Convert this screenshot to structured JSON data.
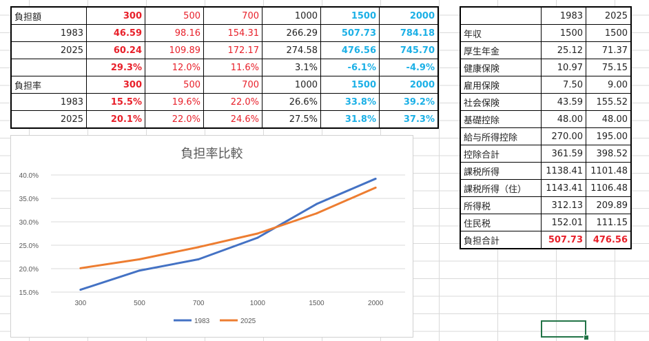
{
  "left_table": {
    "rows": [
      {
        "label": "負担額",
        "align": "left",
        "values": [
          "300",
          "500",
          "700",
          "1000",
          "1500",
          "2000"
        ]
      },
      {
        "label": "1983",
        "align": "right",
        "values": [
          "46.59",
          "98.16",
          "154.31",
          "266.29",
          "507.73",
          "784.18"
        ]
      },
      {
        "label": "2025",
        "align": "right",
        "values": [
          "60.24",
          "109.89",
          "172.17",
          "274.58",
          "476.56",
          "745.70"
        ]
      },
      {
        "label": "",
        "align": "left",
        "values": [
          "29.3%",
          "12.0%",
          "11.6%",
          "3.1%",
          "-6.1%",
          "-4.9%"
        ]
      },
      {
        "label": "負担率",
        "align": "left",
        "values": [
          "300",
          "500",
          "700",
          "1000",
          "1500",
          "2000"
        ]
      },
      {
        "label": "1983",
        "align": "right",
        "values": [
          "15.5%",
          "19.6%",
          "22.0%",
          "26.6%",
          "33.8%",
          "39.2%"
        ]
      },
      {
        "label": "2025",
        "align": "right",
        "values": [
          "20.1%",
          "22.0%",
          "24.6%",
          "27.5%",
          "31.8%",
          "37.3%"
        ]
      }
    ]
  },
  "right_table": {
    "rows": [
      {
        "label": "",
        "values": [
          "1983",
          "2025"
        ]
      },
      {
        "label": "年収",
        "values": [
          "1500",
          "1500"
        ]
      },
      {
        "label": "厚生年金",
        "values": [
          "25.12",
          "71.37"
        ]
      },
      {
        "label": "健康保険",
        "values": [
          "10.97",
          "75.15"
        ]
      },
      {
        "label": "雇用保険",
        "values": [
          "7.50",
          "9.00"
        ]
      },
      {
        "label": "社会保険",
        "values": [
          "43.59",
          "155.52"
        ]
      },
      {
        "label": "基礎控除",
        "values": [
          "48.00",
          "48.00"
        ]
      },
      {
        "label": "給与所得控除",
        "values": [
          "270.00",
          "195.00"
        ]
      },
      {
        "label": "控除合計",
        "values": [
          "361.59",
          "398.52"
        ]
      },
      {
        "label": "課税所得",
        "values": [
          "1138.41",
          "1101.48"
        ]
      },
      {
        "label": "課税所得（住）",
        "values": [
          "1143.41",
          "1106.48"
        ]
      },
      {
        "label": "所得税",
        "values": [
          "312.13",
          "209.89"
        ]
      },
      {
        "label": "住民税",
        "values": [
          "152.01",
          "111.15"
        ]
      },
      {
        "label": "負担合計",
        "values": [
          "507.73",
          "476.56"
        ]
      }
    ]
  },
  "chart_data": {
    "type": "line",
    "title": "負担率比較",
    "categories": [
      "300",
      "500",
      "700",
      "1000",
      "1500",
      "2000"
    ],
    "series": [
      {
        "name": "1983",
        "color": "#4472c4",
        "values": [
          15.5,
          19.6,
          22.0,
          26.6,
          33.8,
          39.2
        ]
      },
      {
        "name": "2025",
        "color": "#ed7d31",
        "values": [
          20.1,
          22.0,
          24.6,
          27.5,
          31.8,
          37.3
        ]
      }
    ],
    "y_ticks": [
      "15.0%",
      "20.0%",
      "25.0%",
      "30.0%",
      "35.0%",
      "40.0%"
    ],
    "ylim": [
      15,
      40
    ],
    "grid": true,
    "legend": "bottom"
  }
}
